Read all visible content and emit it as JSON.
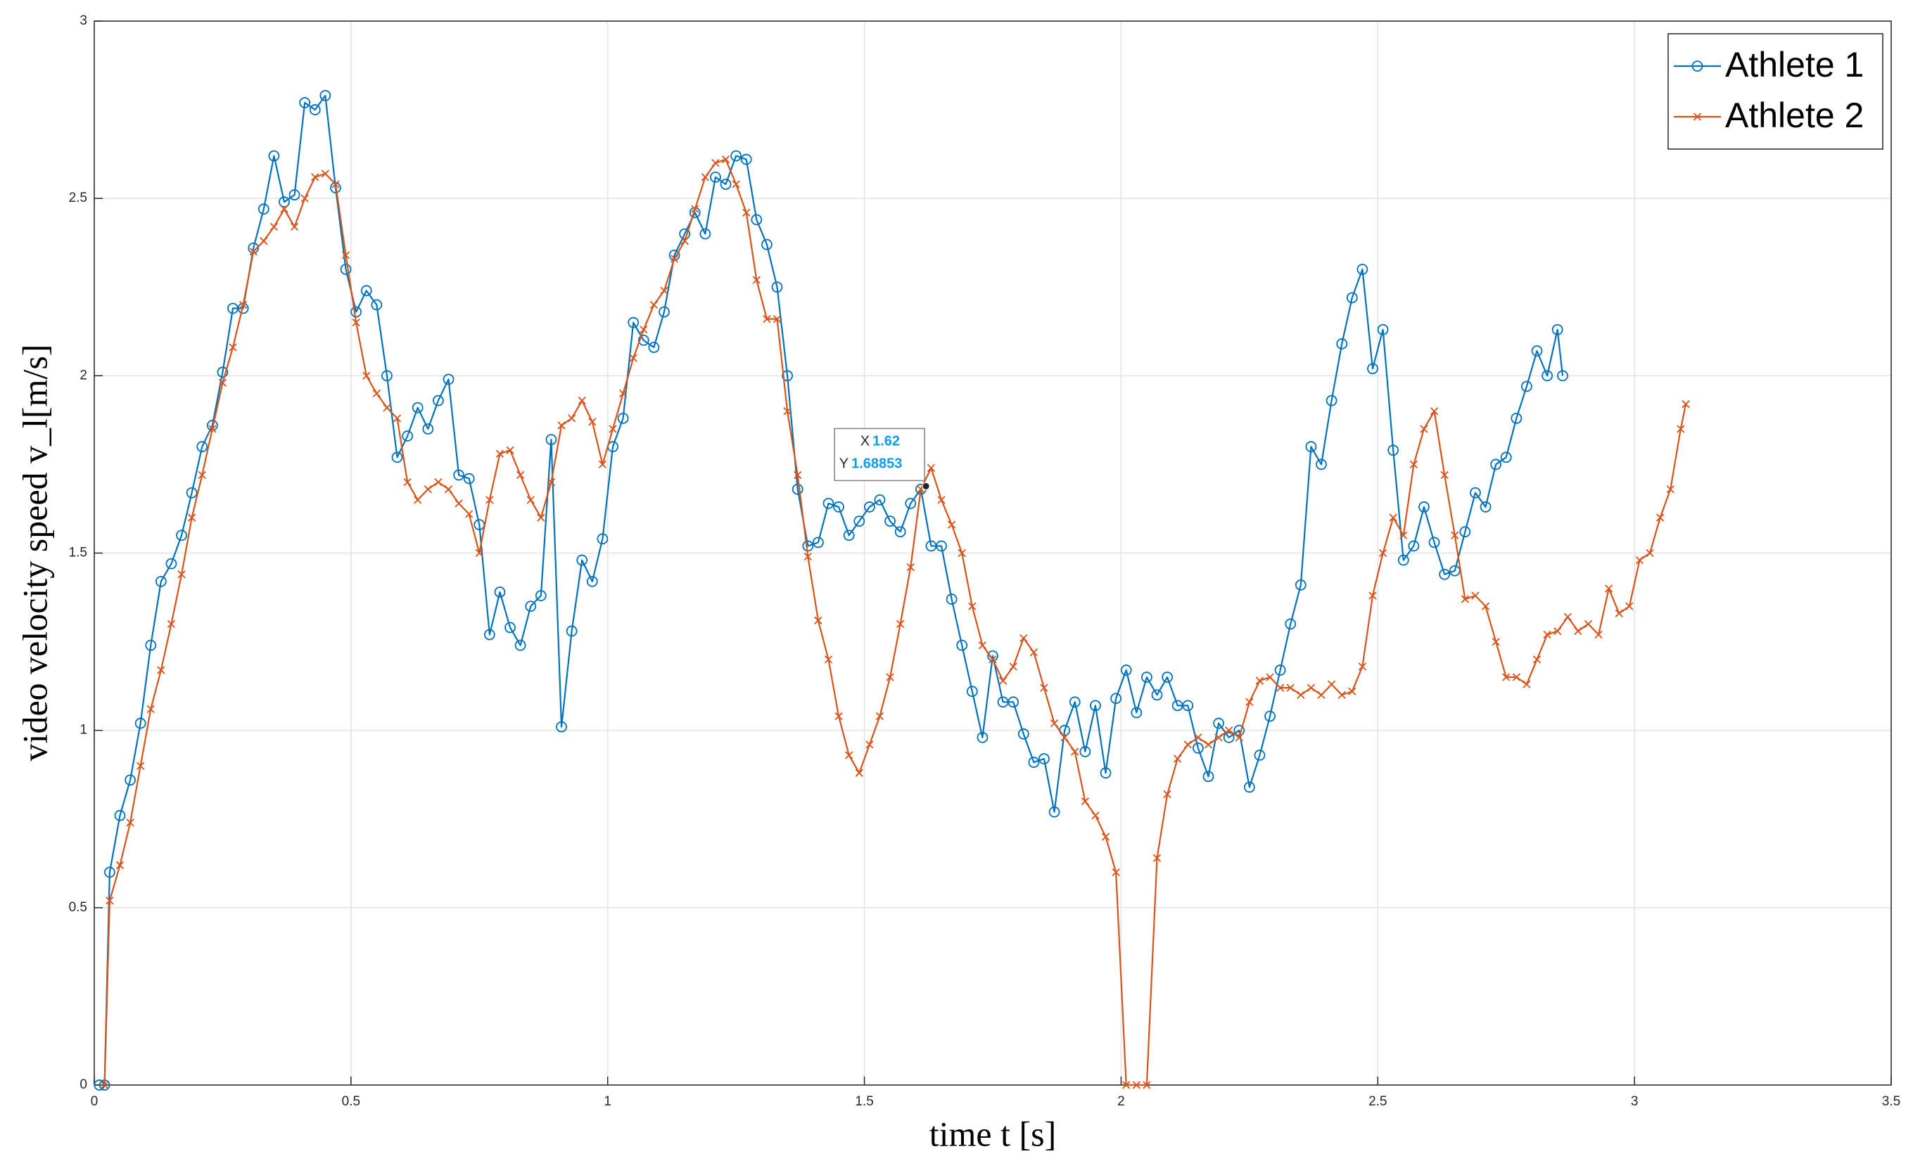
{
  "chart_data": {
    "type": "line",
    "xlabel": "time t [s]",
    "ylabel": "video velocity speed v_l[m/s]",
    "xlim": [
      0,
      3.5
    ],
    "xticks": [
      0,
      0.5,
      1,
      1.5,
      2,
      2.5,
      3,
      3.5
    ],
    "ylim": [
      0,
      3
    ],
    "yticks": [
      0,
      0.5,
      1,
      1.5,
      2,
      2.5,
      3
    ],
    "grid": true,
    "legend": "northeast",
    "series": [
      {
        "name": "Athlete 1",
        "color": "#0072BD",
        "marker": "circle",
        "x": [
          0.01,
          0.02,
          0.03,
          0.05,
          0.07,
          0.09,
          0.11,
          0.13,
          0.15,
          0.17,
          0.19,
          0.21,
          0.23,
          0.25,
          0.27,
          0.29,
          0.31,
          0.33,
          0.35,
          0.37,
          0.39,
          0.41,
          0.43,
          0.45,
          0.47,
          0.49,
          0.51,
          0.53,
          0.55,
          0.57,
          0.59,
          0.61,
          0.63,
          0.65,
          0.67,
          0.69,
          0.71,
          0.73,
          0.75,
          0.77,
          0.79,
          0.81,
          0.83,
          0.85,
          0.87,
          0.89,
          0.91,
          0.93,
          0.95,
          0.97,
          0.99,
          1.01,
          1.03,
          1.05,
          1.07,
          1.09,
          1.11,
          1.13,
          1.15,
          1.17,
          1.19,
          1.21,
          1.23,
          1.25,
          1.27,
          1.29,
          1.31,
          1.33,
          1.35,
          1.37,
          1.39,
          1.41,
          1.43,
          1.45,
          1.47,
          1.49,
          1.51,
          1.53,
          1.55,
          1.57,
          1.59,
          1.61,
          1.63,
          1.65,
          1.67,
          1.69,
          1.71,
          1.73,
          1.75,
          1.77,
          1.79,
          1.81,
          1.83,
          1.85,
          1.87,
          1.89,
          1.91,
          1.93,
          1.95,
          1.97,
          1.99,
          2.01,
          2.03,
          2.05,
          2.07,
          2.09,
          2.11,
          2.13,
          2.15,
          2.17,
          2.19,
          2.21,
          2.23,
          2.25,
          2.27,
          2.29,
          2.31,
          2.33,
          2.35,
          2.37,
          2.39,
          2.41,
          2.43,
          2.45,
          2.47,
          2.49,
          2.51,
          2.53,
          2.55,
          2.57,
          2.59,
          2.61,
          2.63,
          2.65,
          2.67,
          2.69,
          2.71,
          2.73,
          2.75,
          2.77,
          2.79,
          2.81,
          2.83,
          2.85,
          2.86
        ],
        "values": [
          0,
          0,
          0.6,
          0.76,
          0.86,
          1.02,
          1.24,
          1.42,
          1.47,
          1.55,
          1.67,
          1.8,
          1.86,
          2.01,
          2.19,
          2.19,
          2.36,
          2.47,
          2.62,
          2.49,
          2.51,
          2.77,
          2.75,
          2.79,
          2.53,
          2.3,
          2.18,
          2.24,
          2.2,
          2.0,
          1.77,
          1.83,
          1.91,
          1.85,
          1.93,
          1.99,
          1.72,
          1.71,
          1.58,
          1.27,
          1.39,
          1.29,
          1.24,
          1.35,
          1.38,
          1.82,
          1.01,
          1.28,
          1.48,
          1.42,
          1.54,
          1.8,
          1.88,
          2.15,
          2.1,
          2.08,
          2.18,
          2.34,
          2.4,
          2.46,
          2.4,
          2.56,
          2.54,
          2.62,
          2.61,
          2.44,
          2.37,
          2.25,
          2.0,
          1.68,
          1.52,
          1.53,
          1.64,
          1.63,
          1.55,
          1.59,
          1.63,
          1.65,
          1.59,
          1.56,
          1.64,
          1.68,
          1.52,
          1.52,
          1.37,
          1.24,
          1.11,
          0.98,
          1.21,
          1.08,
          1.08,
          0.99,
          0.91,
          0.92,
          0.77,
          1.0,
          1.08,
          0.94,
          1.07,
          0.88,
          1.09,
          1.17,
          1.05,
          1.15,
          1.1,
          1.15,
          1.07,
          1.07,
          0.95,
          0.87,
          1.02,
          0.98,
          1.0,
          0.84,
          0.93,
          1.04,
          1.17,
          1.3,
          1.41,
          1.8,
          1.75,
          1.93,
          2.09,
          2.22,
          2.3,
          2.02,
          2.13,
          1.79,
          1.48,
          1.52,
          1.63,
          1.53,
          1.44,
          1.45,
          1.56,
          1.67,
          1.63,
          1.75,
          1.77,
          1.88,
          1.97,
          2.07,
          2.0,
          2.13,
          2.0
        ]
      },
      {
        "name": "Athlete 2",
        "color": "#D95319",
        "marker": "x",
        "x": [
          0.02,
          0.03,
          0.05,
          0.07,
          0.09,
          0.11,
          0.13,
          0.15,
          0.17,
          0.19,
          0.21,
          0.23,
          0.25,
          0.27,
          0.29,
          0.31,
          0.33,
          0.35,
          0.37,
          0.39,
          0.41,
          0.43,
          0.45,
          0.47,
          0.49,
          0.51,
          0.53,
          0.55,
          0.57,
          0.59,
          0.61,
          0.63,
          0.65,
          0.67,
          0.69,
          0.71,
          0.73,
          0.75,
          0.77,
          0.79,
          0.81,
          0.83,
          0.85,
          0.87,
          0.89,
          0.91,
          0.93,
          0.95,
          0.97,
          0.99,
          1.01,
          1.03,
          1.05,
          1.07,
          1.09,
          1.11,
          1.13,
          1.15,
          1.17,
          1.19,
          1.21,
          1.23,
          1.25,
          1.27,
          1.29,
          1.31,
          1.33,
          1.35,
          1.37,
          1.39,
          1.41,
          1.43,
          1.45,
          1.47,
          1.49,
          1.51,
          1.53,
          1.55,
          1.57,
          1.59,
          1.61,
          1.63,
          1.65,
          1.67,
          1.69,
          1.71,
          1.73,
          1.75,
          1.77,
          1.79,
          1.81,
          1.83,
          1.85,
          1.87,
          1.89,
          1.91,
          1.93,
          1.95,
          1.97,
          1.99,
          2.01,
          2.03,
          2.05,
          2.07,
          2.09,
          2.11,
          2.13,
          2.15,
          2.17,
          2.19,
          2.21,
          2.23,
          2.25,
          2.27,
          2.29,
          2.31,
          2.33,
          2.35,
          2.37,
          2.39,
          2.41,
          2.43,
          2.45,
          2.47,
          2.49,
          2.51,
          2.53,
          2.55,
          2.57,
          2.59,
          2.61,
          2.63,
          2.65,
          2.67,
          2.69,
          2.71,
          2.73,
          2.75,
          2.77,
          2.79,
          2.81,
          2.83,
          2.85,
          2.87,
          2.89,
          2.91,
          2.93,
          2.95,
          2.97,
          2.99,
          3.01,
          3.03,
          3.05,
          3.07,
          3.09,
          3.1
        ],
        "values": [
          0,
          0.52,
          0.62,
          0.74,
          0.9,
          1.06,
          1.17,
          1.3,
          1.44,
          1.6,
          1.72,
          1.85,
          1.98,
          2.08,
          2.2,
          2.35,
          2.38,
          2.42,
          2.47,
          2.42,
          2.5,
          2.56,
          2.57,
          2.54,
          2.34,
          2.15,
          2.0,
          1.95,
          1.91,
          1.88,
          1.7,
          1.65,
          1.68,
          1.7,
          1.68,
          1.64,
          1.61,
          1.5,
          1.65,
          1.78,
          1.79,
          1.72,
          1.65,
          1.6,
          1.7,
          1.86,
          1.88,
          1.93,
          1.87,
          1.75,
          1.85,
          1.95,
          2.05,
          2.13,
          2.2,
          2.24,
          2.33,
          2.38,
          2.47,
          2.56,
          2.6,
          2.61,
          2.54,
          2.46,
          2.27,
          2.16,
          2.16,
          1.9,
          1.72,
          1.49,
          1.31,
          1.2,
          1.04,
          0.93,
          0.88,
          0.96,
          1.04,
          1.15,
          1.3,
          1.46,
          1.68,
          1.74,
          1.65,
          1.58,
          1.5,
          1.35,
          1.24,
          1.2,
          1.14,
          1.18,
          1.26,
          1.22,
          1.12,
          1.02,
          0.98,
          0.94,
          0.8,
          0.76,
          0.7,
          0.6,
          0,
          0,
          0,
          0.64,
          0.82,
          0.92,
          0.96,
          0.98,
          0.96,
          0.98,
          1.0,
          0.98,
          1.08,
          1.14,
          1.15,
          1.12,
          1.12,
          1.1,
          1.12,
          1.1,
          1.13,
          1.1,
          1.11,
          1.18,
          1.38,
          1.5,
          1.6,
          1.55,
          1.75,
          1.85,
          1.9,
          1.72,
          1.55,
          1.37,
          1.38,
          1.35,
          1.25,
          1.15,
          1.15,
          1.13,
          1.2,
          1.27,
          1.28,
          1.32,
          1.28,
          1.3,
          1.27,
          1.4,
          1.33,
          1.35,
          1.48,
          1.5,
          1.6,
          1.68,
          1.85,
          1.92
        ]
      }
    ],
    "annotation": {
      "x_label": "X",
      "x": 1.62,
      "y_label": "Y",
      "y": 1.68853
    }
  }
}
